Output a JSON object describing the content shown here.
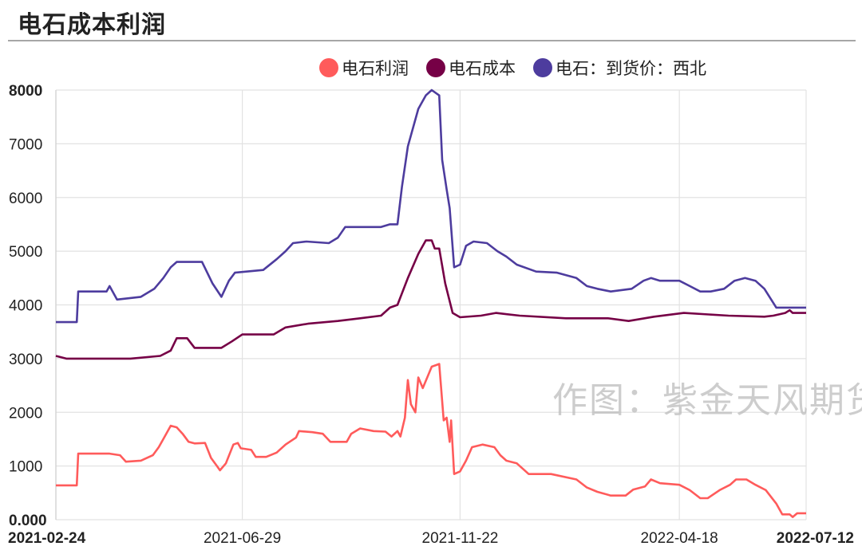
{
  "title": "电石成本利润",
  "watermark": "作图：紫金天风期货",
  "legend": [
    {
      "label": "电石利润",
      "color": "#ff5b5b"
    },
    {
      "label": "电石成本",
      "color": "#760046"
    },
    {
      "label": "电石：到货价：西北",
      "color": "#4d3c9e"
    }
  ],
  "chart_data": {
    "type": "line",
    "title": "电石成本利润",
    "ylim": [
      0,
      8000
    ],
    "y_ticks": [
      "0.000",
      "1000",
      "2000",
      "3000",
      "4000",
      "5000",
      "6000",
      "7000",
      "8000"
    ],
    "x_range": [
      "2021-02-24",
      "2022-07-12"
    ],
    "x_ticks": [
      "2021-02-24",
      "2021-06-29",
      "2021-11-22",
      "2022-04-18",
      "2022-07-12"
    ],
    "grid": true,
    "legend_position": "top",
    "series": [
      {
        "name": "电石利润",
        "color": "#ff5b5b",
        "points": [
          [
            "2021-02-24",
            640
          ],
          [
            "2021-03-10",
            640
          ],
          [
            "2021-03-11",
            1230
          ],
          [
            "2021-04-01",
            1230
          ],
          [
            "2021-04-08",
            1200
          ],
          [
            "2021-04-12",
            1080
          ],
          [
            "2021-04-22",
            1100
          ],
          [
            "2021-04-30",
            1200
          ],
          [
            "2021-05-04",
            1350
          ],
          [
            "2021-05-07",
            1500
          ],
          [
            "2021-05-12",
            1750
          ],
          [
            "2021-05-16",
            1720
          ],
          [
            "2021-05-20",
            1600
          ],
          [
            "2021-05-24",
            1450
          ],
          [
            "2021-05-28",
            1420
          ],
          [
            "2021-06-04",
            1430
          ],
          [
            "2021-06-08",
            1150
          ],
          [
            "2021-06-12",
            1000
          ],
          [
            "2021-06-14",
            920
          ],
          [
            "2021-06-18",
            1050
          ],
          [
            "2021-06-23",
            1400
          ],
          [
            "2021-06-26",
            1430
          ],
          [
            "2021-06-28",
            1330
          ],
          [
            "2021-07-05",
            1300
          ],
          [
            "2021-07-08",
            1170
          ],
          [
            "2021-07-15",
            1170
          ],
          [
            "2021-07-22",
            1250
          ],
          [
            "2021-07-28",
            1400
          ],
          [
            "2021-08-04",
            1530
          ],
          [
            "2021-08-06",
            1650
          ],
          [
            "2021-08-15",
            1630
          ],
          [
            "2021-08-22",
            1600
          ],
          [
            "2021-08-27",
            1450
          ],
          [
            "2021-09-07",
            1450
          ],
          [
            "2021-09-10",
            1600
          ],
          [
            "2021-09-16",
            1700
          ],
          [
            "2021-09-25",
            1650
          ],
          [
            "2021-10-03",
            1640
          ],
          [
            "2021-10-07",
            1550
          ],
          [
            "2021-10-11",
            1650
          ],
          [
            "2021-10-13",
            1550
          ],
          [
            "2021-10-16",
            1900
          ],
          [
            "2021-10-18",
            2600
          ],
          [
            "2021-10-20",
            2150
          ],
          [
            "2021-10-23",
            2000
          ],
          [
            "2021-10-25",
            2650
          ],
          [
            "2021-10-28",
            2450
          ],
          [
            "2021-10-31",
            2650
          ],
          [
            "2021-11-03",
            2850
          ],
          [
            "2021-11-06",
            2880
          ],
          [
            "2021-11-08",
            2900
          ],
          [
            "2021-11-11",
            1850
          ],
          [
            "2021-11-13",
            1900
          ],
          [
            "2021-11-15",
            1450
          ],
          [
            "2021-11-16",
            1850
          ],
          [
            "2021-11-18",
            850
          ],
          [
            "2021-11-22",
            900
          ],
          [
            "2021-11-26",
            1100
          ],
          [
            "2021-11-30",
            1350
          ],
          [
            "2021-12-07",
            1400
          ],
          [
            "2021-12-15",
            1350
          ],
          [
            "2021-12-19",
            1200
          ],
          [
            "2021-12-23",
            1100
          ],
          [
            "2021-12-30",
            1050
          ],
          [
            "2022-01-07",
            850
          ],
          [
            "2022-01-22",
            850
          ],
          [
            "2022-02-08",
            750
          ],
          [
            "2022-02-15",
            600
          ],
          [
            "2022-02-22",
            520
          ],
          [
            "2022-03-03",
            450
          ],
          [
            "2022-03-13",
            450
          ],
          [
            "2022-03-18",
            560
          ],
          [
            "2022-03-26",
            620
          ],
          [
            "2022-03-30",
            750
          ],
          [
            "2022-04-05",
            680
          ],
          [
            "2022-04-18",
            650
          ],
          [
            "2022-04-25",
            550
          ],
          [
            "2022-05-02",
            400
          ],
          [
            "2022-05-07",
            400
          ],
          [
            "2022-05-15",
            550
          ],
          [
            "2022-05-22",
            650
          ],
          [
            "2022-05-26",
            750
          ],
          [
            "2022-06-02",
            750
          ],
          [
            "2022-06-08",
            650
          ],
          [
            "2022-06-15",
            550
          ],
          [
            "2022-06-22",
            300
          ],
          [
            "2022-06-26",
            100
          ],
          [
            "2022-07-01",
            100
          ],
          [
            "2022-07-03",
            50
          ],
          [
            "2022-07-06",
            120
          ],
          [
            "2022-07-12",
            120
          ]
        ]
      },
      {
        "name": "电石成本",
        "color": "#760046",
        "points": [
          [
            "2021-02-24",
            3050
          ],
          [
            "2021-03-03",
            3000
          ],
          [
            "2021-04-15",
            3000
          ],
          [
            "2021-05-05",
            3050
          ],
          [
            "2021-05-12",
            3150
          ],
          [
            "2021-05-16",
            3380
          ],
          [
            "2021-05-23",
            3380
          ],
          [
            "2021-05-28",
            3200
          ],
          [
            "2021-06-03",
            3200
          ],
          [
            "2021-06-15",
            3200
          ],
          [
            "2021-06-22",
            3320
          ],
          [
            "2021-06-29",
            3450
          ],
          [
            "2021-07-20",
            3450
          ],
          [
            "2021-07-28",
            3580
          ],
          [
            "2021-08-12",
            3650
          ],
          [
            "2021-09-01",
            3700
          ],
          [
            "2021-09-16",
            3750
          ],
          [
            "2021-09-30",
            3800
          ],
          [
            "2021-10-06",
            3950
          ],
          [
            "2021-10-11",
            4000
          ],
          [
            "2021-10-18",
            4500
          ],
          [
            "2021-10-25",
            4950
          ],
          [
            "2021-10-30",
            5200
          ],
          [
            "2021-11-03",
            5200
          ],
          [
            "2021-11-05",
            5050
          ],
          [
            "2021-11-08",
            5050
          ],
          [
            "2021-11-12",
            4400
          ],
          [
            "2021-11-17",
            3850
          ],
          [
            "2021-11-22",
            3770
          ],
          [
            "2021-12-06",
            3800
          ],
          [
            "2021-12-16",
            3850
          ],
          [
            "2022-01-01",
            3800
          ],
          [
            "2022-02-01",
            3750
          ],
          [
            "2022-03-01",
            3750
          ],
          [
            "2022-03-15",
            3700
          ],
          [
            "2022-04-01",
            3780
          ],
          [
            "2022-04-21",
            3850
          ],
          [
            "2022-05-21",
            3800
          ],
          [
            "2022-06-14",
            3780
          ],
          [
            "2022-06-20",
            3800
          ],
          [
            "2022-06-28",
            3850
          ],
          [
            "2022-07-01",
            3900
          ],
          [
            "2022-07-03",
            3850
          ],
          [
            "2022-07-12",
            3850
          ]
        ]
      },
      {
        "name": "电石：到货价：西北",
        "color": "#4d3c9e",
        "points": [
          [
            "2021-02-24",
            3680
          ],
          [
            "2021-03-10",
            3680
          ],
          [
            "2021-03-11",
            4250
          ],
          [
            "2021-03-30",
            4250
          ],
          [
            "2021-04-01",
            4350
          ],
          [
            "2021-04-06",
            4100
          ],
          [
            "2021-04-22",
            4150
          ],
          [
            "2021-05-01",
            4300
          ],
          [
            "2021-05-07",
            4500
          ],
          [
            "2021-05-12",
            4700
          ],
          [
            "2021-05-16",
            4800
          ],
          [
            "2021-06-02",
            4800
          ],
          [
            "2021-06-09",
            4400
          ],
          [
            "2021-06-15",
            4150
          ],
          [
            "2021-06-20",
            4450
          ],
          [
            "2021-06-24",
            4600
          ],
          [
            "2021-07-13",
            4650
          ],
          [
            "2021-07-22",
            4850
          ],
          [
            "2021-07-28",
            5000
          ],
          [
            "2021-08-02",
            5150
          ],
          [
            "2021-08-11",
            5180
          ],
          [
            "2021-08-26",
            5150
          ],
          [
            "2021-09-01",
            5250
          ],
          [
            "2021-09-06",
            5450
          ],
          [
            "2021-09-30",
            5450
          ],
          [
            "2021-10-06",
            5500
          ],
          [
            "2021-10-11",
            5500
          ],
          [
            "2021-10-14",
            6200
          ],
          [
            "2021-10-18",
            6950
          ],
          [
            "2021-10-25",
            7650
          ],
          [
            "2021-10-30",
            7900
          ],
          [
            "2021-11-03",
            8000
          ],
          [
            "2021-11-08",
            7900
          ],
          [
            "2021-11-10",
            6700
          ],
          [
            "2021-11-13",
            6150
          ],
          [
            "2021-11-15",
            5800
          ],
          [
            "2021-11-18",
            4700
          ],
          [
            "2021-11-22",
            4750
          ],
          [
            "2021-11-26",
            5100
          ],
          [
            "2021-12-01",
            5180
          ],
          [
            "2021-12-10",
            5150
          ],
          [
            "2021-12-17",
            5000
          ],
          [
            "2021-12-23",
            4900
          ],
          [
            "2021-12-30",
            4750
          ],
          [
            "2022-01-12",
            4620
          ],
          [
            "2022-01-26",
            4600
          ],
          [
            "2022-02-08",
            4500
          ],
          [
            "2022-02-15",
            4350
          ],
          [
            "2022-02-22",
            4300
          ],
          [
            "2022-03-03",
            4250
          ],
          [
            "2022-03-17",
            4300
          ],
          [
            "2022-03-25",
            4450
          ],
          [
            "2022-03-30",
            4500
          ],
          [
            "2022-04-05",
            4450
          ],
          [
            "2022-04-18",
            4450
          ],
          [
            "2022-04-25",
            4350
          ],
          [
            "2022-05-02",
            4250
          ],
          [
            "2022-05-09",
            4250
          ],
          [
            "2022-05-18",
            4300
          ],
          [
            "2022-05-25",
            4450
          ],
          [
            "2022-06-01",
            4500
          ],
          [
            "2022-06-08",
            4450
          ],
          [
            "2022-06-14",
            4300
          ],
          [
            "2022-06-22",
            3950
          ],
          [
            "2022-06-26",
            3950
          ],
          [
            "2022-07-05",
            3950
          ],
          [
            "2022-07-12",
            3950
          ]
        ]
      }
    ]
  }
}
